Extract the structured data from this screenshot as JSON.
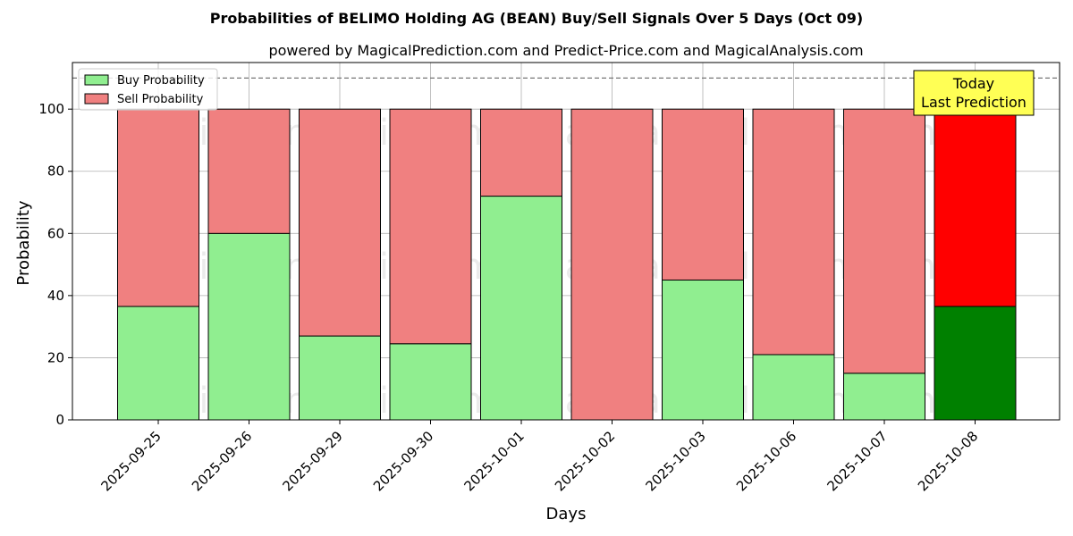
{
  "chart_data": {
    "type": "bar",
    "stacked": true,
    "title": "Probabilities of BELIMO Holding AG (BEAN) Buy/Sell Signals Over 5 Days (Oct 09)",
    "subtitle": "powered by MagicalPrediction.com and Predict-Price.com and MagicalAnalysis.com",
    "xlabel": "Days",
    "ylabel": "Probability",
    "ylim": [
      0,
      115
    ],
    "yticks": [
      0,
      20,
      40,
      60,
      80,
      100
    ],
    "grid": true,
    "reference_line": 110,
    "categories": [
      "2025-09-25",
      "2025-09-26",
      "2025-09-29",
      "2025-09-30",
      "2025-10-01",
      "2025-10-02",
      "2025-10-03",
      "2025-10-06",
      "2025-10-07",
      "2025-10-08"
    ],
    "series": [
      {
        "name": "Buy Probability",
        "color": "#90ee90",
        "highlight_color": "#008000",
        "values": [
          36.5,
          60,
          27,
          24.5,
          72,
          0,
          45,
          21,
          15,
          36.5
        ]
      },
      {
        "name": "Sell Probability",
        "color": "#f08080",
        "highlight_color": "#ff0000",
        "values": [
          63.5,
          40,
          73,
          75.5,
          28,
          100,
          55,
          79,
          85,
          63.5
        ]
      }
    ],
    "highlight_index": 9,
    "legend_position": "top-left",
    "annotation": {
      "line1": "Today",
      "line2": "Last Prediction",
      "bg": "#ffff55"
    },
    "watermarks": [
      "MagicalAnalysis.com",
      "MagicalPrediction.com"
    ]
  }
}
